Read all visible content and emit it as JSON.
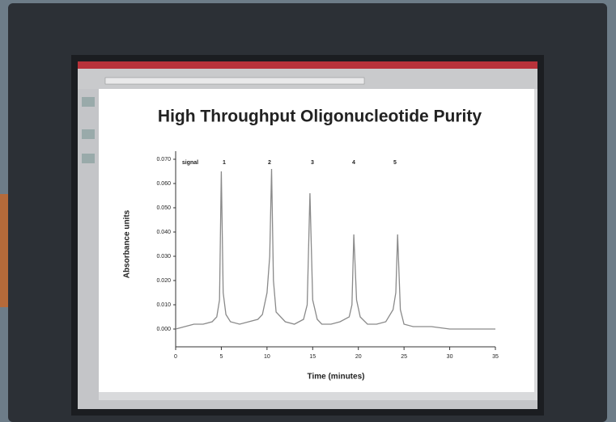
{
  "chart_data": {
    "type": "line",
    "title": "High Throughput Oligonucleotide Purity",
    "x_label": "Time (minutes)",
    "y_label": "Absorbance units",
    "annotations": [
      "signal",
      "1",
      "2",
      "3",
      "4",
      "5"
    ],
    "x": [
      0,
      1,
      2,
      3,
      4,
      4.5,
      4.8,
      5.0,
      5.2,
      5.5,
      6,
      7,
      8,
      9,
      9.5,
      10,
      10.3,
      10.5,
      10.7,
      11,
      12,
      13,
      14,
      14.4,
      14.7,
      15.0,
      15.5,
      16,
      17,
      18,
      19,
      19.3,
      19.5,
      19.8,
      20.2,
      21,
      22,
      23,
      23.8,
      24.1,
      24.3,
      24.6,
      25,
      26,
      28,
      30,
      32,
      35
    ],
    "values": [
      0.0,
      0.001,
      0.002,
      0.002,
      0.003,
      0.005,
      0.012,
      0.065,
      0.015,
      0.006,
      0.003,
      0.002,
      0.003,
      0.004,
      0.006,
      0.015,
      0.03,
      0.066,
      0.02,
      0.007,
      0.003,
      0.002,
      0.004,
      0.01,
      0.056,
      0.012,
      0.004,
      0.002,
      0.002,
      0.003,
      0.005,
      0.01,
      0.039,
      0.012,
      0.005,
      0.002,
      0.002,
      0.003,
      0.008,
      0.015,
      0.039,
      0.008,
      0.002,
      0.001,
      0.001,
      0.0,
      0.0,
      0.0
    ],
    "color": "#8a8a8a",
    "xlim": [
      0,
      35
    ],
    "xticks": [
      0,
      5,
      10,
      15,
      20,
      25,
      30,
      35
    ],
    "ylim": [
      0,
      0.07
    ],
    "yticks": [
      {
        "value": 0,
        "label": "0.000"
      },
      {
        "value": 0.01,
        "label": "0.010"
      },
      {
        "value": 0.02,
        "label": "0.020"
      },
      {
        "value": 0.03,
        "label": "0.030"
      },
      {
        "value": 0.04,
        "label": "0.040"
      },
      {
        "value": 0.05,
        "label": "0.050"
      },
      {
        "value": 0.06,
        "label": "0.060"
      },
      {
        "value": 0.07,
        "label": "0.070"
      }
    ]
  }
}
